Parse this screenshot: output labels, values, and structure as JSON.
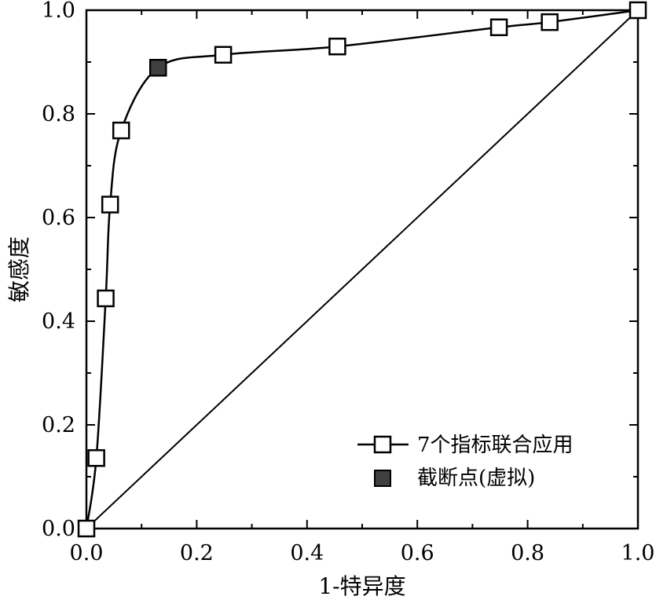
{
  "chart_data": {
    "type": "line",
    "title": "",
    "xlabel": "1-特异度",
    "ylabel": "敏感度",
    "xlim": [
      0,
      1
    ],
    "ylim": [
      0,
      1
    ],
    "grid": false,
    "legend_position": "bottom-right",
    "x_ticks": [
      "0.0",
      "0.2",
      "0.4",
      "0.6",
      "0.8",
      "1.0"
    ],
    "y_ticks": [
      "0.0",
      "0.2",
      "0.4",
      "0.6",
      "0.8",
      "1.0"
    ],
    "series": [
      {
        "name": "7个指标联合应用",
        "marker": "open-square",
        "points": [
          [
            0.0,
            0.0
          ],
          [
            0.018,
            0.136
          ],
          [
            0.035,
            0.444
          ],
          [
            0.043,
            0.625
          ],
          [
            0.063,
            0.768
          ],
          [
            0.13,
            0.889
          ],
          [
            0.248,
            0.914
          ],
          [
            0.455,
            0.93
          ],
          [
            0.748,
            0.967
          ],
          [
            0.84,
            0.977
          ],
          [
            1.0,
            1.0
          ]
        ]
      },
      {
        "name": "截断点(虚拟)",
        "marker": "filled-square",
        "points": [
          [
            0.13,
            0.889
          ]
        ]
      }
    ],
    "reference_line": {
      "from": [
        0,
        0
      ],
      "to": [
        1,
        1
      ]
    },
    "colors": {
      "line": "#000000",
      "cutoff_fill": "#404040",
      "open_fill": "#ffffff"
    }
  }
}
